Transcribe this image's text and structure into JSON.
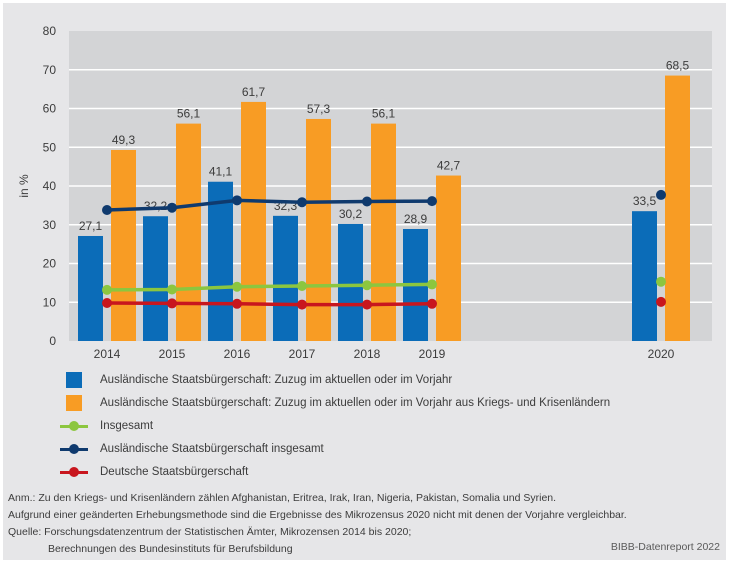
{
  "chart_data": {
    "type": "bar",
    "title": "",
    "xlabel": "",
    "ylabel": "in %",
    "ylim": [
      0,
      80
    ],
    "yticks": [
      0,
      10,
      20,
      30,
      40,
      50,
      60,
      70,
      80
    ],
    "grid": true,
    "categories": [
      "2014",
      "2015",
      "2016",
      "2017",
      "2018",
      "2019",
      "2020"
    ],
    "series": [
      {
        "name": "Ausländische Staatsbürgerschaft: Zuzug im aktuellen oder im Vorjahr",
        "kind": "bar",
        "color": "#0b6cb8",
        "values": [
          27.1,
          32.2,
          41.1,
          32.3,
          30.2,
          28.9,
          33.5
        ],
        "labels": [
          "27,1",
          "32,2",
          "41,1",
          "32,3",
          "30,2",
          "28,9",
          "33,5"
        ]
      },
      {
        "name": "Ausländische Staatsbürgerschaft: Zuzug im aktuellen oder im Vorjahr aus Kriegs- und Krisenländern",
        "kind": "bar",
        "color": "#f89c24",
        "values": [
          49.3,
          56.1,
          61.7,
          57.3,
          56.1,
          42.7,
          68.5
        ],
        "labels": [
          "49,3",
          "56,1",
          "61,7",
          "57,3",
          "56,1",
          "42,7",
          "68,5"
        ]
      },
      {
        "name": "Insgesamt",
        "kind": "line",
        "color": "#8cc63f",
        "values": [
          13.2,
          13.3,
          14.0,
          14.2,
          14.4,
          14.6,
          15.3
        ]
      },
      {
        "name": "Ausländische Staatsbürgerschaft insgesamt",
        "kind": "line",
        "color": "#0f3a6e",
        "values": [
          33.8,
          34.4,
          36.3,
          35.8,
          36.0,
          36.1,
          37.7
        ]
      },
      {
        "name": "Deutsche Staatsbürgerschaft",
        "kind": "line",
        "color": "#c8161e",
        "values": [
          9.8,
          9.7,
          9.6,
          9.4,
          9.4,
          9.6,
          10.1
        ]
      }
    ],
    "line_break_before": "2020",
    "legend_position": "bottom-left"
  },
  "legend": [
    {
      "label": "Ausländische Staatsbürgerschaft: Zuzug im aktuellen oder im Vorjahr",
      "type": "square",
      "color": "#0b6cb8"
    },
    {
      "label": "Ausländische Staatsbürgerschaft: Zuzug im aktuellen oder im Vorjahr aus Kriegs- und Krisenländern",
      "type": "square",
      "color": "#f89c24"
    },
    {
      "label": "Insgesamt",
      "type": "line",
      "color": "#8cc63f"
    },
    {
      "label": "Ausländische Staatsbürgerschaft insgesamt",
      "type": "line",
      "color": "#0f3a6e"
    },
    {
      "label": "Deutsche Staatsbürgerschaft",
      "type": "line",
      "color": "#c8161e"
    }
  ],
  "notes": {
    "anm": "Anm.: Zu den Kriegs- und Krisenländern zählen Afghanistan, Eritrea, Irak, Iran, Nigeria, Pakistan, Somalia und Syrien.",
    "method": "Aufgrund einer geänderten Erhebungsmethode sind die Ergebnisse des Mikrozensus 2020 nicht mit denen der Vorjahre vergleichbar.",
    "source_1": "Quelle: Forschungsdatenzentrum der Statistischen Ämter, Mikrozensen 2014 bis 2020;",
    "source_2": "Berechnungen des Bundesinstituts für Berufsbildung",
    "credit": "BIBB-Datenreport 2022"
  },
  "colors": {
    "plot_bg": "#d3d4d6",
    "panel_bg": "#e6e6e8",
    "grid": "#ffffff"
  }
}
